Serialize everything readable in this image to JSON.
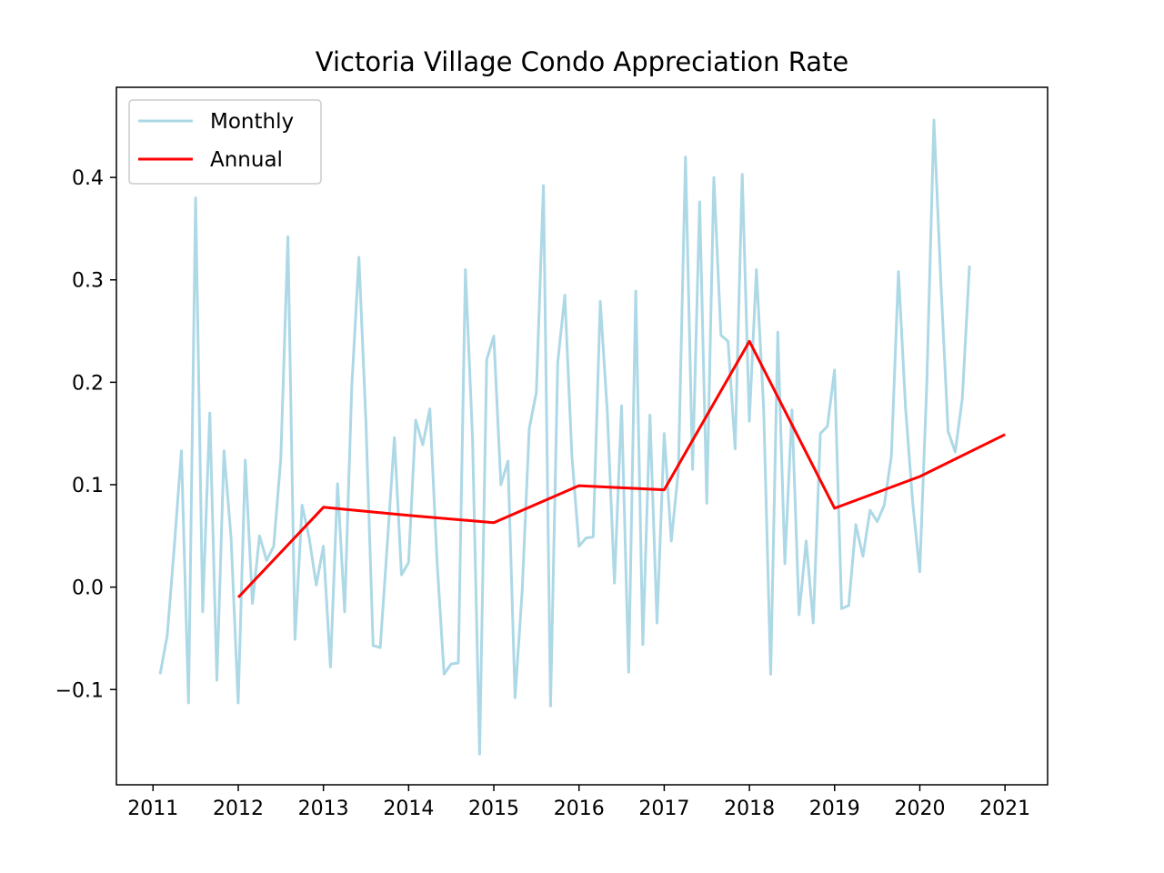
{
  "chart_data": {
    "type": "line",
    "title": "Victoria Village Condo Appreciation Rate",
    "xlabel": "",
    "ylabel": "",
    "xlim": [
      2010.57,
      2021.5
    ],
    "ylim": [
      -0.193,
      0.488
    ],
    "x_ticks": [
      2011,
      2012,
      2013,
      2014,
      2015,
      2016,
      2017,
      2018,
      2019,
      2020,
      2021
    ],
    "y_ticks": [
      -0.1,
      0.0,
      0.1,
      0.2,
      0.3,
      0.4
    ],
    "y_tick_labels": [
      "−0.1",
      "0.0",
      "0.1",
      "0.2",
      "0.3",
      "0.4"
    ],
    "grid": false,
    "legend": {
      "position": "top-left"
    },
    "series": [
      {
        "name": "Monthly",
        "color": "#add8e6",
        "x_start": 2011.083,
        "x_step": 0.08333,
        "values": [
          -0.085,
          -0.047,
          0.04,
          0.133,
          -0.113,
          0.38,
          -0.024,
          0.17,
          -0.091,
          0.133,
          0.048,
          -0.113,
          0.124,
          -0.016,
          0.05,
          0.026,
          0.04,
          0.126,
          0.342,
          -0.051,
          0.08,
          0.048,
          0.002,
          0.04,
          -0.078,
          0.101,
          -0.024,
          0.195,
          0.322,
          0.159,
          -0.057,
          -0.059,
          0.042,
          0.146,
          0.012,
          0.024,
          0.163,
          0.139,
          0.174,
          0.027,
          -0.085,
          -0.075,
          -0.074,
          0.31,
          0.146,
          -0.163,
          0.222,
          0.245,
          0.1,
          0.123,
          -0.108,
          -0.004,
          0.155,
          0.19,
          0.392,
          -0.116,
          0.219,
          0.285,
          0.128,
          0.04,
          0.048,
          0.049,
          0.279,
          0.17,
          0.004,
          0.177,
          -0.083,
          0.289,
          -0.056,
          0.168,
          -0.035,
          0.15,
          0.045,
          0.114,
          0.42,
          0.115,
          0.376,
          0.082,
          0.4,
          0.246,
          0.24,
          0.135,
          0.403,
          0.162,
          0.31,
          0.176,
          -0.085,
          0.249,
          0.023,
          0.173,
          -0.027,
          0.045,
          -0.035,
          0.15,
          0.157,
          0.212,
          -0.021,
          -0.018,
          0.061,
          0.03,
          0.075,
          0.064,
          0.08,
          0.128,
          0.308,
          0.175,
          0.083,
          0.015,
          0.2,
          0.456,
          0.294,
          0.152,
          0.132,
          0.184,
          0.314
        ]
      },
      {
        "name": "Annual",
        "color": "#ff0000",
        "x": [
          2012,
          2013,
          2014,
          2015,
          2016,
          2017,
          2018,
          2019,
          2020,
          2021
        ],
        "values": [
          -0.01,
          0.078,
          0.07,
          0.063,
          0.099,
          0.095,
          0.24,
          0.077,
          0.108,
          0.149
        ]
      }
    ]
  }
}
